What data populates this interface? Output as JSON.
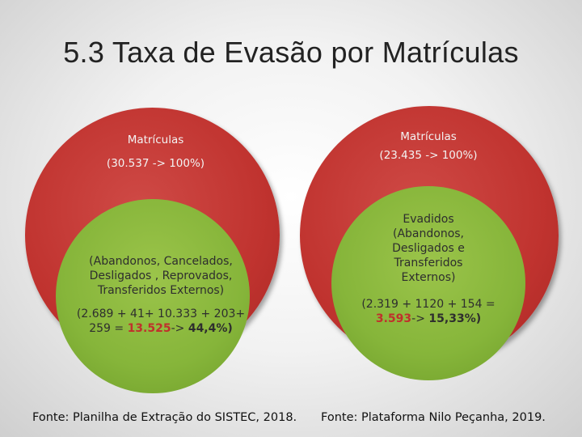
{
  "title": "5.3 Taxa de Evasão por Matrículas",
  "colors": {
    "outer": "#c0332f",
    "inner": "#86b53a",
    "highlight": "#c0302c"
  },
  "left": {
    "outer_label": "Matrículas",
    "outer_value": "(30.537 -> 100%)",
    "inner_categories": "(Abandonos, Cancelados, Desligados , Reprovados, Transferidos Externos)",
    "formula_pre": "(2.689 + 41+ 10.333 + 203+ 259 = ",
    "total": "13.525",
    "arrow": "-> ",
    "percent": "44,4%)",
    "source": "Fonte: Planilha de Extração do SISTEC, 2018."
  },
  "right": {
    "outer_label": "Matrículas",
    "outer_value": "(23.435 -> 100%)",
    "inner_categories": "Evadidos (Abandonos, Desligados e Transferidos Externos)",
    "formula_pre": "(2.319 + 1120 + 154 = ",
    "total": "3.593",
    "arrow": "-> ",
    "percent": "15,33%)",
    "source": "Fonte: Plataforma Nilo Peçanha, 2019."
  }
}
